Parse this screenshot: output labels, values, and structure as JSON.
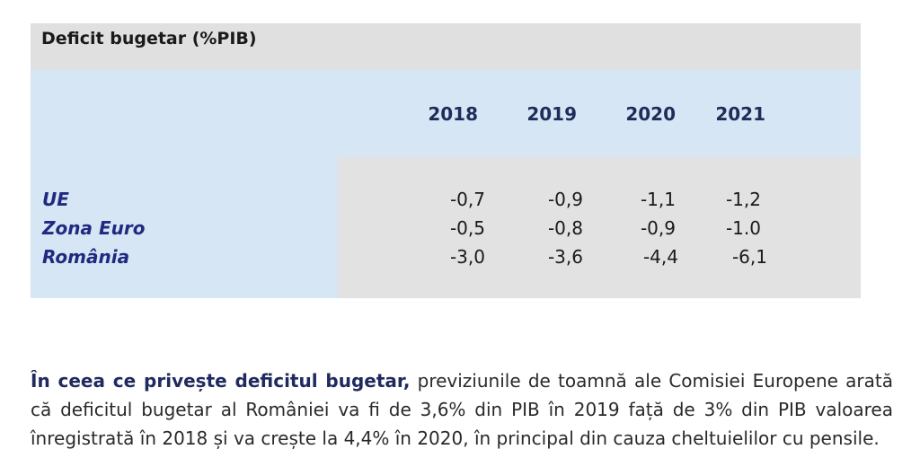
{
  "table": {
    "title": "Deficit bugetar  (%PIB)",
    "years": [
      "2018",
      "2019",
      "2020",
      "2021"
    ],
    "rows": [
      {
        "label": "UE",
        "values": [
          "-0,7",
          "-0,9",
          "-1,1",
          "-1,2"
        ]
      },
      {
        "label": "Zona Euro",
        "values": [
          "-0,5",
          "-0,8",
          "-0,9",
          "-1.0"
        ]
      },
      {
        "label": "România",
        "values": [
          "-3,0",
          "-3,6",
          "-4,4",
          "-6,1"
        ]
      }
    ]
  },
  "paragraph": {
    "lead": "În ceea ce privește deficitul bugetar,",
    "body": " previziunile de toamnă ale Comisiei Europene arată că deficitul bugetar al României va fi de 3,6% din PIB în 2019 față de 3% din PIB valoarea înregistrată în 2018 și va crește la 4,4% în 2020, în principal din cauza cheltuielilor cu pensile."
  }
}
